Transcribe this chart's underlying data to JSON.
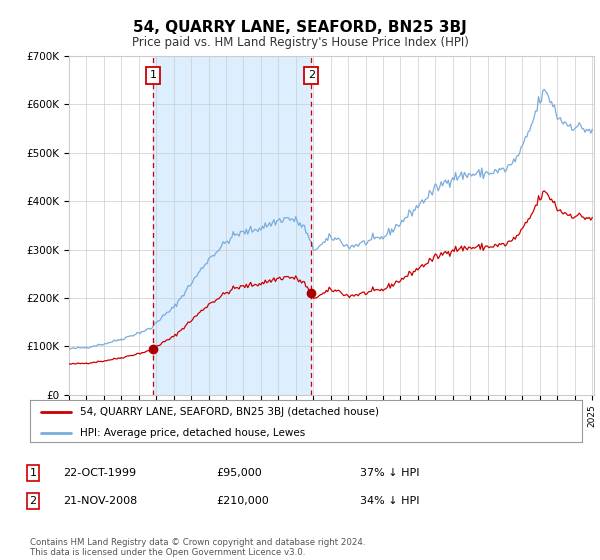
{
  "title": "54, QUARRY LANE, SEAFORD, BN25 3BJ",
  "subtitle": "Price paid vs. HM Land Registry's House Price Index (HPI)",
  "legend_line1": "54, QUARRY LANE, SEAFORD, BN25 3BJ (detached house)",
  "legend_line2": "HPI: Average price, detached house, Lewes",
  "sale1_label": "22-OCT-1999",
  "sale1_price": 95000,
  "sale1_price_str": "£95,000",
  "sale1_hpi": "37% ↓ HPI",
  "sale2_label": "21-NOV-2008",
  "sale2_price": 210000,
  "sale2_price_str": "£210,000",
  "sale2_hpi": "34% ↓ HPI",
  "hpi_color": "#7aacdc",
  "price_color": "#cc0000",
  "dashed_line_color": "#cc0000",
  "shade_color": "#ddeeff",
  "dot_color": "#aa0000",
  "background_color": "#ffffff",
  "grid_color": "#cccccc",
  "footer": "Contains HM Land Registry data © Crown copyright and database right 2024.\nThis data is licensed under the Open Government Licence v3.0.",
  "ylim": [
    0,
    700000
  ],
  "yticks": [
    0,
    100000,
    200000,
    300000,
    400000,
    500000,
    600000,
    700000
  ],
  "ytick_labels": [
    "£0",
    "£100K",
    "£200K",
    "£300K",
    "£400K",
    "£500K",
    "£600K",
    "£700K"
  ]
}
